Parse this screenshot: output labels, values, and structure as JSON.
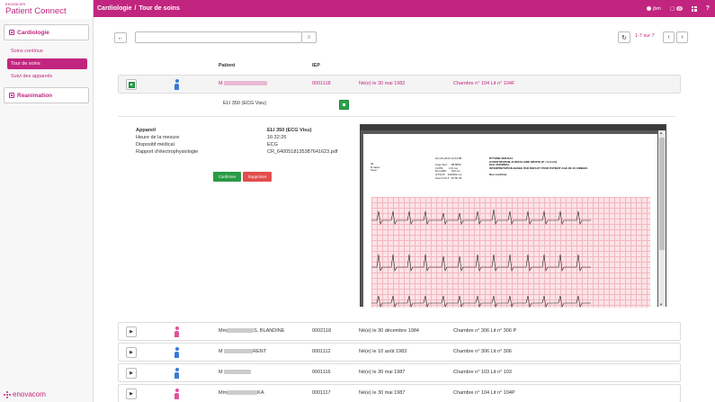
{
  "brand": {
    "small": "enovacom",
    "name": "Patient Connect",
    "footer": "enovacom"
  },
  "sidebar": {
    "sections": [
      {
        "label": "Cardiologie",
        "items": [
          "Soins continus",
          "Tour de soins",
          "Suivi des appareils"
        ],
        "active": 1
      },
      {
        "label": "Reanimation",
        "items": []
      }
    ]
  },
  "header": {
    "breadcrumb": [
      "Cardiologie",
      "Tour de soins"
    ],
    "separator": "/",
    "user": "jbm",
    "notifications": "0",
    "help": "?"
  },
  "toolbar": {
    "back_icon": "arrow-left-icon",
    "search_value": "",
    "pager_text": "1-7 sur 7"
  },
  "columns": {
    "patient": "Patient",
    "iep": "IEP"
  },
  "rows": [
    {
      "name_prefix": "M",
      "name_suffix": "",
      "iep": "0001118",
      "birth": "Né(e) le 30 mai 1982",
      "room": "Chambre n° 104 Lit n° 104F",
      "gender": "male",
      "expanded": true
    },
    {
      "name_prefix": "Mm",
      "name_suffix": "S, BLANDINE",
      "iep": "0002118",
      "birth": "Né(e) le 30 décembre 1984",
      "room": "Chambre n° 306 Lit n° 306 P",
      "gender": "female"
    },
    {
      "name_prefix": "M",
      "name_suffix": "RENT",
      "iep": "0001112",
      "birth": "Né(e) le 10 août 1983",
      "room": "Chambre n° 306 Lit n° 306",
      "gender": "male"
    },
    {
      "name_prefix": "M",
      "name_suffix": "",
      "iep": "0001116",
      "birth": "Né(e) le 30 mai 1987",
      "room": "Chambre n° 103 Lit n° 103",
      "gender": "male"
    },
    {
      "name_prefix": "Mm",
      "name_suffix": "KA",
      "iep": "0001117",
      "birth": "Né(e) le 30 mai 1987",
      "room": "Chambre n° 104 Lit n° 104P",
      "gender": "female"
    }
  ],
  "device": {
    "line": "ELI 350 (ECG Visu)",
    "fields": [
      {
        "key": "Appareil",
        "value": "ELI 350 (ECG Visu)",
        "bold": true
      },
      {
        "key": "Heure de la mesure",
        "value": "16:32:26"
      },
      {
        "key": "Dispositif médical",
        "value": "ECG"
      },
      {
        "key": "Rapport d'électrophysiologie",
        "value": "CR_6400518135387641623.pdf"
      }
    ],
    "confirm": "Confirmer",
    "delete": "Supprimer"
  },
  "ecg_report": {
    "col1": "ID:\nD.naiss:\nSexe:",
    "col2": "01-Oct-2014 14:34:58\n\nFreq.Vent:     88 BPM\nInt PR:       172 ms\nDur.QRS:      102 ms\nQT/QTc:   340/402 ms\nAxes P-R-T:  46 60 36",
    "col3": "RYTHME SINUSAL\nHYPERTROPHIE AURICULAIRE DROITE [P > 0,3 mV]\nECG ANORMAL\nINTERPRETATION BASEE PAR DEFAUT POUR PATIENT AGE DE 40 ANNEES\n\nNon confirmé"
  }
}
